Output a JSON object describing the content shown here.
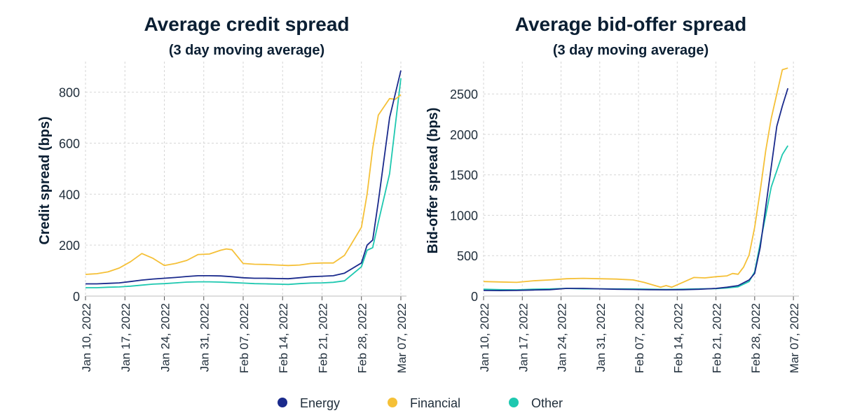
{
  "colors": {
    "Energy": "#1a2a8c",
    "Financial": "#f5c037",
    "Other": "#1ec8b0"
  },
  "legend": {
    "items": [
      "Energy",
      "Financial",
      "Other"
    ]
  },
  "chart_data": [
    {
      "type": "line",
      "title": "Average credit spread",
      "subtitle": "(3 day moving average)",
      "ylabel": "Credit spread (bps)",
      "xlabel": "",
      "ylim": [
        0,
        920
      ],
      "yticks": [
        0,
        200,
        400,
        600,
        800
      ],
      "xlim": [
        "2022-01-10",
        "2022-03-08"
      ],
      "xticks": [
        "2022-01-10",
        "2022-01-17",
        "2022-01-24",
        "2022-01-31",
        "2022-02-07",
        "2022-02-14",
        "2022-02-21",
        "2022-02-28",
        "2022-03-07"
      ],
      "xtick_labels": [
        "Jan 10, 2022",
        "Jan 17, 2022",
        "Jan 24, 2022",
        "Jan 31, 2022",
        "Feb 07, 2022",
        "Feb 14, 2022",
        "Feb 21, 2022",
        "Feb 28, 2022",
        "Mar 07, 2022"
      ],
      "grid": true,
      "series": [
        {
          "name": "Energy",
          "x": [
            "2022-01-10",
            "2022-01-12",
            "2022-01-14",
            "2022-01-16",
            "2022-01-18",
            "2022-01-20",
            "2022-01-22",
            "2022-01-24",
            "2022-01-26",
            "2022-01-28",
            "2022-01-30",
            "2022-02-01",
            "2022-02-03",
            "2022-02-05",
            "2022-02-07",
            "2022-02-09",
            "2022-02-11",
            "2022-02-13",
            "2022-02-15",
            "2022-02-17",
            "2022-02-19",
            "2022-02-21",
            "2022-02-23",
            "2022-02-25",
            "2022-02-28",
            "2022-03-01",
            "2022-03-02",
            "2022-03-03",
            "2022-03-05",
            "2022-03-07"
          ],
          "values": [
            48,
            48,
            50,
            52,
            57,
            63,
            67,
            70,
            73,
            77,
            80,
            80,
            79,
            76,
            72,
            70,
            70,
            69,
            68,
            72,
            76,
            78,
            80,
            90,
            130,
            200,
            220,
            370,
            700,
            885
          ]
        },
        {
          "name": "Financial",
          "x": [
            "2022-01-10",
            "2022-01-12",
            "2022-01-14",
            "2022-01-16",
            "2022-01-18",
            "2022-01-20",
            "2022-01-22",
            "2022-01-24",
            "2022-01-26",
            "2022-01-28",
            "2022-01-30",
            "2022-02-01",
            "2022-02-03",
            "2022-02-04",
            "2022-02-05",
            "2022-02-07",
            "2022-02-09",
            "2022-02-11",
            "2022-02-13",
            "2022-02-15",
            "2022-02-17",
            "2022-02-19",
            "2022-02-21",
            "2022-02-23",
            "2022-02-25",
            "2022-02-28",
            "2022-03-01",
            "2022-03-02",
            "2022-03-03",
            "2022-03-05",
            "2022-03-06",
            "2022-03-07"
          ],
          "values": [
            85,
            88,
            95,
            110,
            135,
            167,
            148,
            120,
            128,
            140,
            163,
            165,
            180,
            185,
            182,
            128,
            125,
            124,
            122,
            120,
            122,
            128,
            130,
            130,
            160,
            270,
            400,
            580,
            710,
            775,
            772,
            790
          ]
        },
        {
          "name": "Other",
          "x": [
            "2022-01-10",
            "2022-01-12",
            "2022-01-14",
            "2022-01-16",
            "2022-01-18",
            "2022-01-20",
            "2022-01-22",
            "2022-01-24",
            "2022-01-26",
            "2022-01-28",
            "2022-01-30",
            "2022-02-01",
            "2022-02-03",
            "2022-02-05",
            "2022-02-07",
            "2022-02-09",
            "2022-02-11",
            "2022-02-13",
            "2022-02-15",
            "2022-02-17",
            "2022-02-19",
            "2022-02-21",
            "2022-02-23",
            "2022-02-25",
            "2022-02-28",
            "2022-03-01",
            "2022-03-02",
            "2022-03-03",
            "2022-03-05",
            "2022-03-07"
          ],
          "values": [
            33,
            33,
            35,
            36,
            39,
            43,
            47,
            49,
            52,
            55,
            56,
            56,
            55,
            53,
            51,
            49,
            48,
            47,
            46,
            49,
            51,
            52,
            54,
            60,
            115,
            180,
            190,
            290,
            480,
            855
          ]
        }
      ]
    },
    {
      "type": "line",
      "title": "Average bid-offer spread",
      "subtitle": "(3 day moving average)",
      "ylabel": "Bid-offer spread (bps)",
      "xlabel": "",
      "ylim": [
        0,
        2900
      ],
      "yticks": [
        0,
        500,
        1000,
        1500,
        2000,
        2500
      ],
      "xlim": [
        "2022-01-10",
        "2022-03-08"
      ],
      "xticks": [
        "2022-01-10",
        "2022-01-17",
        "2022-01-24",
        "2022-01-31",
        "2022-02-07",
        "2022-02-14",
        "2022-02-21",
        "2022-02-28",
        "2022-03-07"
      ],
      "xtick_labels": [
        "Jan 10, 2022",
        "Jan 17, 2022",
        "Jan 24, 2022",
        "Jan 31, 2022",
        "Feb 07, 2022",
        "Feb 14, 2022",
        "Feb 21, 2022",
        "Feb 28, 2022",
        "Mar 07, 2022"
      ],
      "grid": true,
      "series": [
        {
          "name": "Energy",
          "x": [
            "2022-01-10",
            "2022-01-13",
            "2022-01-16",
            "2022-01-19",
            "2022-01-22",
            "2022-01-25",
            "2022-01-28",
            "2022-01-31",
            "2022-02-03",
            "2022-02-06",
            "2022-02-09",
            "2022-02-12",
            "2022-02-15",
            "2022-02-18",
            "2022-02-21",
            "2022-02-23",
            "2022-02-25",
            "2022-02-27",
            "2022-02-28",
            "2022-03-01",
            "2022-03-02",
            "2022-03-03",
            "2022-03-04",
            "2022-03-05",
            "2022-03-06"
          ],
          "values": [
            70,
            68,
            70,
            75,
            80,
            95,
            95,
            90,
            85,
            82,
            80,
            78,
            80,
            85,
            95,
            110,
            130,
            200,
            280,
            600,
            1100,
            1600,
            2100,
            2350,
            2570
          ]
        },
        {
          "name": "Financial",
          "x": [
            "2022-01-10",
            "2022-01-13",
            "2022-01-16",
            "2022-01-19",
            "2022-01-22",
            "2022-01-25",
            "2022-01-28",
            "2022-01-31",
            "2022-02-03",
            "2022-02-06",
            "2022-02-08",
            "2022-02-10",
            "2022-02-11",
            "2022-02-12",
            "2022-02-13",
            "2022-02-15",
            "2022-02-17",
            "2022-02-19",
            "2022-02-21",
            "2022-02-23",
            "2022-02-24",
            "2022-02-25",
            "2022-02-26",
            "2022-02-27",
            "2022-02-28",
            "2022-03-01",
            "2022-03-02",
            "2022-03-03",
            "2022-03-04",
            "2022-03-05",
            "2022-03-06"
          ],
          "values": [
            180,
            175,
            170,
            190,
            200,
            215,
            220,
            215,
            210,
            200,
            170,
            130,
            110,
            130,
            110,
            170,
            230,
            225,
            240,
            250,
            280,
            270,
            360,
            510,
            850,
            1300,
            1800,
            2200,
            2500,
            2800,
            2820
          ]
        },
        {
          "name": "Other",
          "x": [
            "2022-01-10",
            "2022-01-13",
            "2022-01-16",
            "2022-01-19",
            "2022-01-22",
            "2022-01-25",
            "2022-01-28",
            "2022-01-31",
            "2022-02-03",
            "2022-02-06",
            "2022-02-09",
            "2022-02-12",
            "2022-02-15",
            "2022-02-18",
            "2022-02-21",
            "2022-02-23",
            "2022-02-25",
            "2022-02-27",
            "2022-02-28",
            "2022-03-01",
            "2022-03-02",
            "2022-03-03",
            "2022-03-04",
            "2022-03-05",
            "2022-03-06"
          ],
          "values": [
            85,
            80,
            78,
            85,
            88,
            95,
            90,
            90,
            88,
            88,
            85,
            82,
            85,
            90,
            92,
            100,
            115,
            180,
            300,
            650,
            1000,
            1350,
            1550,
            1750,
            1860
          ]
        }
      ]
    }
  ]
}
